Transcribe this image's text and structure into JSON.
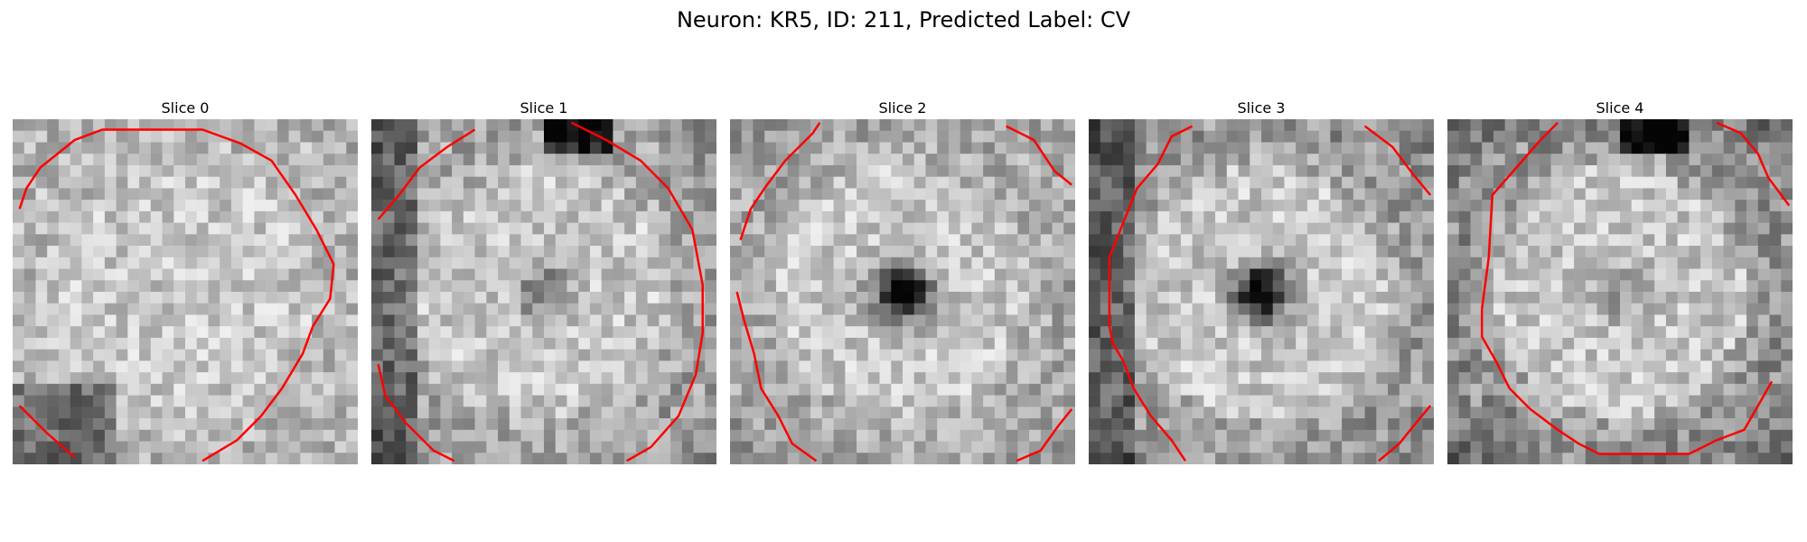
{
  "figure": {
    "title": "Neuron: KR5, ID: 211, Predicted Label: CV"
  },
  "panels": [
    {
      "title": "Slice 0",
      "seed": 11,
      "center_dark": 0.0,
      "ring": 0.15,
      "corner_dark": [
        "bottom-left"
      ]
    },
    {
      "title": "Slice 1",
      "seed": 23,
      "center_dark": 0.35,
      "ring": 0.35,
      "corner_dark": [
        "left",
        "top"
      ]
    },
    {
      "title": "Slice 2",
      "seed": 37,
      "center_dark": 0.95,
      "ring": 0.3,
      "corner_dark": []
    },
    {
      "title": "Slice 3",
      "seed": 51,
      "center_dark": 0.85,
      "ring": 0.45,
      "corner_dark": [
        "left"
      ]
    },
    {
      "title": "Slice 4",
      "seed": 67,
      "center_dark": 0.2,
      "ring": 0.55,
      "corner_dark": [
        "top"
      ]
    }
  ],
  "contour_color": "#ff0000",
  "colormap": "gray_reversed"
}
